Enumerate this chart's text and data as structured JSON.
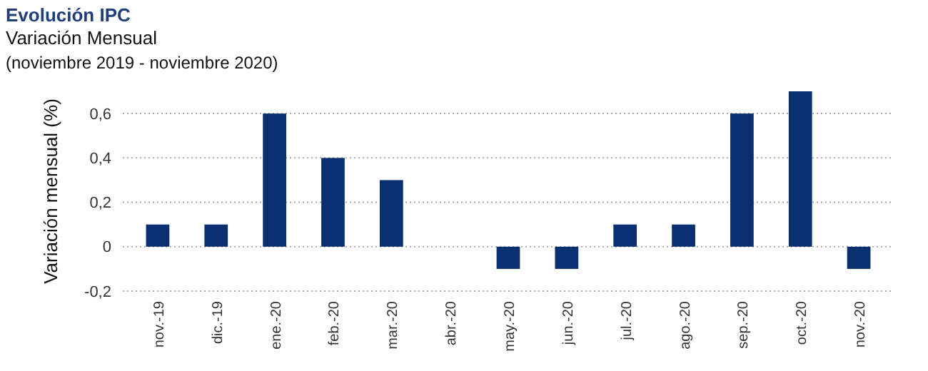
{
  "chart_data": {
    "type": "bar",
    "title": "Evolución IPC",
    "subtitle": "Variación Mensual",
    "annotations": [
      "(noviembre 2019 - noviembre 2020)"
    ],
    "ylabel": "Variación mensual (%)",
    "categories": [
      "nov.-19",
      "dic.-19",
      "ene.-20",
      "feb.-20",
      "mar.-20",
      "abr.-20",
      "may.-20",
      "jun.-20",
      "jul.-20",
      "ago.-20",
      "sep.-20",
      "oct.-20",
      "nov.-20"
    ],
    "values": [
      0.1,
      0.1,
      0.6,
      0.4,
      0.3,
      0,
      -0.1,
      -0.1,
      0.1,
      0.1,
      0.6,
      0.7,
      -0.1
    ],
    "color": "#0a2f6e",
    "ylim": [
      -0.2,
      0.7
    ],
    "yticks": [
      {
        "value": -0.2,
        "label": "-0,2"
      },
      {
        "value": 0,
        "label": "0"
      },
      {
        "value": 0.2,
        "label": "0,2"
      },
      {
        "value": 0.4,
        "label": "0,4"
      },
      {
        "value": 0.6,
        "label": "0,6"
      }
    ],
    "grid": "y"
  }
}
